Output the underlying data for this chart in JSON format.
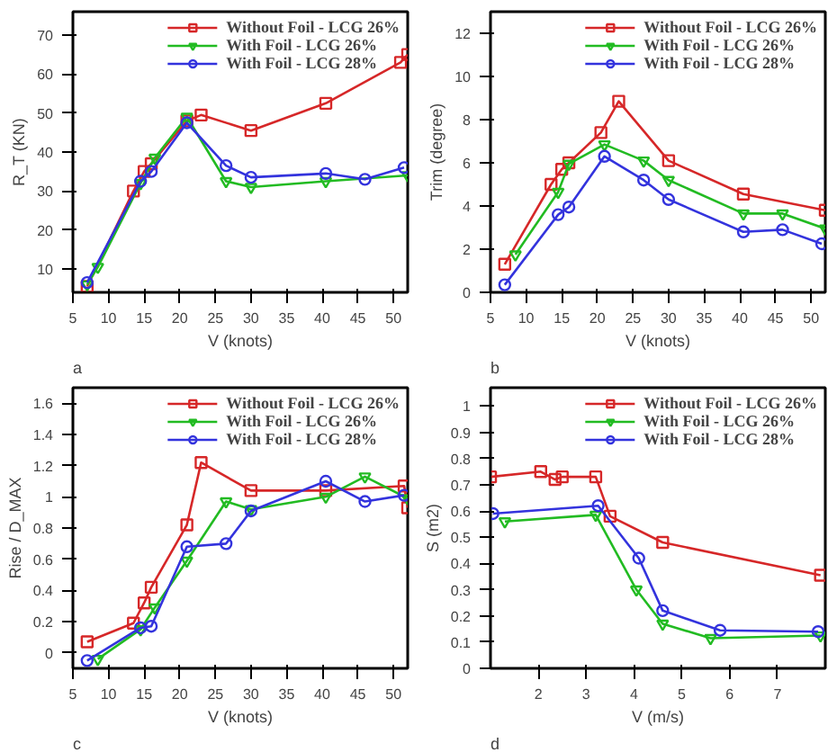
{
  "chart_data": [
    {
      "type": "line",
      "xlabel": "V (knots)",
      "ylabel": "R_T (KN)",
      "annotations": [
        "a"
      ],
      "xlim": [
        5,
        52
      ],
      "ylim": [
        4,
        76
      ],
      "xticks": [
        5,
        10,
        15,
        20,
        25,
        30,
        35,
        40,
        45,
        50
      ],
      "yticks": [
        10,
        20,
        30,
        40,
        50,
        60,
        70
      ],
      "grid": false,
      "legend": "top right",
      "series": [
        {
          "name": "Without Foil - LCG 26%",
          "color": "#d62728",
          "marker": "square",
          "x": [
            7,
            13.5,
            15,
            16,
            21,
            23,
            30,
            40.5,
            51,
            52
          ],
          "values": [
            5.5,
            30,
            35,
            37,
            48,
            49.5,
            45.5,
            52.5,
            63,
            65
          ]
        },
        {
          "name": "With Foil - LCG 26%",
          "color": "#22bb22",
          "marker": "triangle",
          "x": [
            7,
            8.5,
            14.5,
            16.5,
            21,
            26.5,
            30,
            40.5,
            52
          ],
          "values": [
            6,
            10.5,
            32,
            38.5,
            49,
            32.5,
            31,
            32.5,
            34
          ]
        },
        {
          "name": "With Foil - LCG 28%",
          "color": "#3333dd",
          "marker": "circle",
          "x": [
            7,
            14.5,
            16,
            21,
            26.5,
            30,
            40.5,
            46,
            51.5
          ],
          "values": [
            6.5,
            32.5,
            35,
            47.5,
            36.5,
            33.5,
            34.5,
            33,
            36
          ]
        }
      ]
    },
    {
      "type": "line",
      "xlabel": "V (knots)",
      "ylabel": "Trim (degree)",
      "annotations": [
        "b"
      ],
      "xlim": [
        5,
        52
      ],
      "ylim": [
        0,
        13
      ],
      "xticks": [
        5,
        10,
        15,
        20,
        25,
        30,
        35,
        40,
        45,
        50
      ],
      "yticks": [
        0,
        2,
        4,
        6,
        8,
        10,
        12
      ],
      "grid": false,
      "legend": "top right",
      "series": [
        {
          "name": "Without Foil - LCG 26%",
          "color": "#d62728",
          "marker": "square",
          "x": [
            7,
            13.5,
            15,
            16,
            20.5,
            23,
            30,
            40.5,
            52
          ],
          "values": [
            1.3,
            5.0,
            5.7,
            6.0,
            7.4,
            8.85,
            6.1,
            4.55,
            3.8
          ]
        },
        {
          "name": "With Foil - LCG 26%",
          "color": "#22bb22",
          "marker": "triangle",
          "x": [
            8.5,
            14.5,
            16,
            21,
            26.5,
            30,
            40.5,
            46,
            52
          ],
          "values": [
            1.75,
            4.65,
            5.95,
            6.85,
            6.1,
            5.2,
            3.65,
            3.65,
            2.95
          ]
        },
        {
          "name": "With Foil - LCG 28%",
          "color": "#3333dd",
          "marker": "circle",
          "x": [
            7,
            14.5,
            16,
            21,
            26.5,
            30,
            40.5,
            46,
            51.5
          ],
          "values": [
            0.35,
            3.6,
            3.95,
            6.3,
            5.2,
            4.3,
            2.8,
            2.9,
            2.25
          ]
        }
      ]
    },
    {
      "type": "line",
      "xlabel": "V (knots)",
      "ylabel": "Rise / D_MAX",
      "annotations": [
        "c"
      ],
      "xlim": [
        5,
        52
      ],
      "ylim": [
        -0.1,
        1.7
      ],
      "xticks": [
        5,
        10,
        15,
        20,
        25,
        30,
        35,
        40,
        45,
        50
      ],
      "yticks": [
        0,
        0.2,
        0.4,
        0.6,
        0.8,
        1,
        1.2,
        1.4,
        1.6
      ],
      "grid": false,
      "legend": "top right",
      "series": [
        {
          "name": "Without Foil - LCG 26%",
          "color": "#d62728",
          "marker": "square",
          "x": [
            7,
            13.5,
            15,
            16,
            21,
            23,
            30,
            40.5,
            51.5,
            52
          ],
          "values": [
            0.07,
            0.19,
            0.32,
            0.42,
            0.82,
            1.22,
            1.04,
            1.04,
            1.07,
            0.93
          ]
        },
        {
          "name": "With Foil - LCG 26%",
          "color": "#22bb22",
          "marker": "triangle",
          "x": [
            8.5,
            14.5,
            16.5,
            21,
            26.5,
            30,
            40.5,
            46,
            52
          ],
          "values": [
            -0.04,
            0.15,
            0.29,
            0.59,
            0.97,
            0.92,
            1.0,
            1.13,
            0.99
          ]
        },
        {
          "name": "With Foil - LCG 28%",
          "color": "#3333dd",
          "marker": "circle",
          "x": [
            7,
            14.5,
            16,
            21,
            26.5,
            30,
            40.5,
            46,
            51.5
          ],
          "values": [
            -0.05,
            0.16,
            0.17,
            0.68,
            0.7,
            0.91,
            1.1,
            0.97,
            1.01
          ]
        }
      ]
    },
    {
      "type": "line",
      "xlabel": "V (m/s)",
      "ylabel": "S (m2)",
      "annotations": [
        "d"
      ],
      "xlim": [
        1,
        8
      ],
      "ylim": [
        0,
        1.07
      ],
      "xticks": [
        2,
        3,
        4,
        5,
        6,
        7
      ],
      "yticks": [
        0,
        0.1,
        0.2,
        0.3,
        0.4,
        0.5,
        0.6,
        0.7,
        0.8,
        0.9,
        1
      ],
      "grid": false,
      "legend": "top right",
      "series": [
        {
          "name": "Without Foil - LCG 26%",
          "color": "#d62728",
          "marker": "square",
          "x": [
            1,
            2.05,
            2.35,
            2.5,
            3.2,
            3.5,
            4.6,
            7.9
          ],
          "values": [
            0.73,
            0.75,
            0.72,
            0.73,
            0.73,
            0.58,
            0.48,
            0.355
          ]
        },
        {
          "name": "With Foil - LCG 26%",
          "color": "#22bb22",
          "marker": "triangle",
          "x": [
            1.3,
            3.2,
            4.05,
            4.6,
            5.6,
            7.9
          ],
          "values": [
            0.56,
            0.585,
            0.3,
            0.17,
            0.115,
            0.125
          ]
        },
        {
          "name": "With Foil - LCG 28%",
          "color": "#3333dd",
          "marker": "circle",
          "x": [
            1.05,
            3.25,
            4.1,
            4.6,
            5.8,
            7.85
          ],
          "values": [
            0.59,
            0.62,
            0.42,
            0.22,
            0.145,
            0.14
          ]
        }
      ]
    }
  ]
}
